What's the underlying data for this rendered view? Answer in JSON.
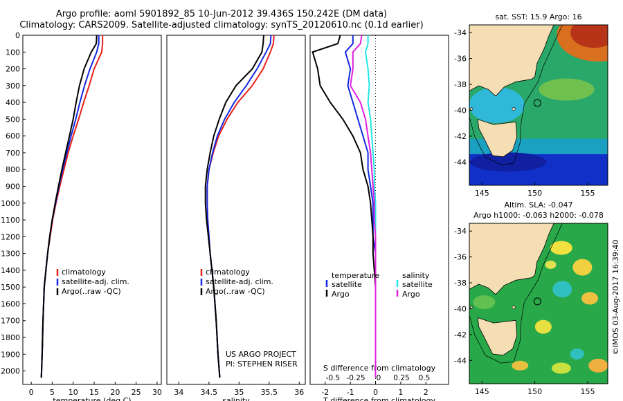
{
  "header": {
    "title_line1": "Argo profile: aoml 5901892_85 10-Jun-2012 39.436S 150.242E (DM data)",
    "title_line2": "Climatology: CARS2009. Satellite-adjusted climatology: synTS_20120610.nc (0.1d earlier)"
  },
  "colors": {
    "climatology": "#e8201a",
    "satellite": "#1428e0",
    "argo": "#000000",
    "sat_salinity": "#22e6e6",
    "argo_salinity": "#e020e0"
  },
  "chart_data": [
    {
      "type": "line",
      "panel": "temperature",
      "xlabel": "temperature (deg C)",
      "ylabel": "",
      "xlim": [
        -2,
        31
      ],
      "ylim": [
        2080,
        0
      ],
      "xticks": [
        "0",
        "5",
        "10",
        "15",
        "20",
        "25",
        "30"
      ],
      "yticks": [
        "0",
        "100",
        "200",
        "300",
        "400",
        "500",
        "600",
        "700",
        "800",
        "900",
        "1000",
        "1100",
        "1200",
        "1300",
        "1400",
        "1500",
        "1600",
        "1700",
        "1800",
        "1900",
        "2000"
      ],
      "legend": [
        "climatology",
        "satellite-adj. clim.",
        "Argo(..raw -QC)"
      ],
      "series": [
        {
          "name": "climatology",
          "color": "#e8201a",
          "x": [
            17.0,
            17.0,
            16.8,
            15.0,
            13.8,
            12.5,
            11.3,
            10.0,
            8.8,
            7.8,
            6.8,
            5.9,
            5.1,
            4.5,
            3.9,
            3.5,
            3.1,
            2.8,
            2.6,
            2.4
          ],
          "y": [
            0,
            50,
            100,
            200,
            300,
            400,
            500,
            600,
            700,
            800,
            900,
            1000,
            1100,
            1200,
            1300,
            1400,
            1500,
            1700,
            1900,
            2040
          ]
        },
        {
          "name": "satellite-adj. clim.",
          "color": "#1428e0",
          "x": [
            16.1,
            16.1,
            15.6,
            14.0,
            12.7,
            11.6,
            10.6,
            9.5,
            8.5,
            7.5,
            6.6,
            5.8,
            5.0,
            4.4,
            3.9,
            3.5,
            3.1,
            2.8,
            2.6,
            2.4
          ],
          "y": [
            0,
            50,
            100,
            200,
            300,
            400,
            500,
            600,
            700,
            800,
            900,
            1000,
            1100,
            1200,
            1300,
            1400,
            1500,
            1700,
            1900,
            2040
          ]
        },
        {
          "name": "Argo(..raw -QC)",
          "color": "#000000",
          "x": [
            15.6,
            15.5,
            14.3,
            12.6,
            11.5,
            10.7,
            10.0,
            9.1,
            8.2,
            7.3,
            6.5,
            5.7,
            5.0,
            4.4,
            3.9,
            3.5,
            3.1,
            2.8,
            2.6,
            2.4
          ],
          "y": [
            0,
            50,
            100,
            200,
            300,
            400,
            500,
            600,
            700,
            800,
            900,
            1000,
            1100,
            1200,
            1300,
            1400,
            1500,
            1700,
            1900,
            2040
          ]
        }
      ]
    },
    {
      "type": "line",
      "panel": "salinity",
      "xlabel": "salinity",
      "ylabel": "",
      "xlim": [
        33.8,
        36.1
      ],
      "ylim": [
        2080,
        0
      ],
      "xticks": [
        "34",
        "34.5",
        "35",
        "35.5",
        "36"
      ],
      "legend": [
        "climatology",
        "satellite-adj. clim.",
        "Argo(..raw -QC)"
      ],
      "annotation": [
        "US ARGO PROJECT",
        "PI: STEPHEN RISER"
      ],
      "series": [
        {
          "name": "climatology",
          "color": "#e8201a",
          "x": [
            35.58,
            35.57,
            35.52,
            35.4,
            35.22,
            34.98,
            34.8,
            34.66,
            34.57,
            34.5,
            34.47,
            34.47,
            34.48,
            34.5,
            34.52,
            34.55,
            34.58,
            34.62,
            34.65,
            34.68
          ],
          "y": [
            0,
            50,
            100,
            200,
            300,
            400,
            500,
            600,
            700,
            800,
            900,
            1000,
            1100,
            1200,
            1300,
            1400,
            1500,
            1700,
            1900,
            2040
          ]
        },
        {
          "name": "satellite-adj. clim.",
          "color": "#1428e0",
          "x": [
            35.53,
            35.52,
            35.45,
            35.3,
            35.12,
            34.92,
            34.76,
            34.64,
            34.56,
            34.5,
            34.47,
            34.47,
            34.48,
            34.5,
            34.52,
            34.55,
            34.58,
            34.62,
            34.65,
            34.68
          ],
          "y": [
            0,
            50,
            100,
            200,
            300,
            400,
            500,
            600,
            700,
            800,
            900,
            1000,
            1100,
            1200,
            1300,
            1400,
            1500,
            1700,
            1900,
            2040
          ]
        },
        {
          "name": "Argo(..raw -QC)",
          "color": "#000000",
          "x": [
            35.41,
            35.4,
            35.38,
            35.22,
            34.95,
            34.78,
            34.67,
            34.58,
            34.52,
            34.47,
            34.44,
            34.44,
            34.46,
            34.49,
            34.52,
            34.55,
            34.58,
            34.62,
            34.65,
            34.68
          ],
          "y": [
            0,
            50,
            100,
            200,
            300,
            400,
            500,
            600,
            700,
            800,
            900,
            1000,
            1100,
            1200,
            1300,
            1400,
            1500,
            1700,
            1900,
            2040
          ]
        }
      ]
    },
    {
      "type": "line",
      "panel": "difference",
      "xlabel": "T difference from climatology",
      "xlabel_top": "S difference from climatology",
      "xlim": [
        -2.6,
        2.9
      ],
      "ylim": [
        2080,
        0
      ],
      "xticks": [
        "-2",
        "-1",
        "0",
        "1",
        "2"
      ],
      "xticks_top": [
        "-0.5",
        "-0.25",
        "0",
        "0.25",
        "0.5"
      ],
      "legend": [
        "temperature",
        "satellite",
        "Argo",
        "salinity",
        "satellite",
        "Argo"
      ],
      "series": [
        {
          "name": "satellite",
          "color": "#1428e0",
          "x": [
            -0.9,
            -0.9,
            -1.2,
            -1.0,
            -1.1,
            -0.9,
            -0.7,
            -0.5,
            -0.3,
            -0.3,
            -0.2,
            -0.1,
            -0.1,
            -0.1,
            0,
            0,
            0,
            0,
            0,
            0
          ],
          "y": [
            0,
            50,
            100,
            200,
            300,
            400,
            500,
            600,
            700,
            800,
            900,
            1000,
            1100,
            1200,
            1300,
            1400,
            1500,
            1700,
            1900,
            2040
          ]
        },
        {
          "name": "Argo",
          "color": "#000000",
          "x": [
            -1.4,
            -1.5,
            -2.5,
            -2.3,
            -2.2,
            -1.8,
            -1.3,
            -0.9,
            -0.6,
            -0.5,
            -0.3,
            -0.2,
            -0.15,
            -0.1,
            -0.1,
            -0.05,
            0,
            0,
            0,
            0
          ],
          "y": [
            0,
            50,
            100,
            200,
            300,
            400,
            500,
            600,
            700,
            800,
            900,
            1000,
            1100,
            1200,
            1300,
            1400,
            1500,
            1700,
            1900,
            2040
          ]
        },
        {
          "name": "satellite",
          "color": "#22e6e6",
          "x": [
            -0.3,
            -0.3,
            -0.4,
            -0.3,
            -0.25,
            -0.3,
            -0.2,
            -0.15,
            -0.1,
            -0.05,
            -0.05,
            0,
            0,
            0,
            0,
            0,
            0,
            0,
            0,
            0
          ],
          "y": [
            0,
            50,
            100,
            200,
            300,
            400,
            500,
            600,
            700,
            800,
            900,
            1000,
            1100,
            1200,
            1300,
            1400,
            1500,
            1700,
            1900,
            2040
          ]
        },
        {
          "name": "Argo",
          "color": "#e020e0",
          "x": [
            -0.55,
            -0.6,
            -0.9,
            -0.9,
            -1.0,
            -0.6,
            -0.4,
            -0.3,
            -0.2,
            -0.15,
            -0.1,
            -0.05,
            -0.05,
            0,
            0,
            0,
            0,
            0,
            0,
            0
          ],
          "y": [
            0,
            50,
            100,
            200,
            300,
            400,
            500,
            600,
            700,
            800,
            900,
            1000,
            1100,
            1200,
            1300,
            1400,
            1500,
            1700,
            1900,
            2040
          ]
        }
      ]
    },
    {
      "type": "heatmap",
      "panel": "sst_map",
      "title": "sat. SST: 15.9 Argo: 16",
      "xticks": [
        "145",
        "150",
        "155"
      ],
      "yticks": [
        "-34",
        "-36",
        "-38",
        "-40",
        "-42",
        "-44"
      ],
      "profile_location": {
        "lon": 150.242,
        "lat": -39.436
      }
    },
    {
      "type": "heatmap",
      "panel": "sla_map",
      "title": "Altim. SLA: -0.047",
      "subtitle": "Argo h1000: -0.063 h2000: -0.078",
      "xticks": [
        "145",
        "150",
        "155"
      ],
      "yticks": [
        "-34",
        "-36",
        "-38",
        "-40",
        "-42",
        "-44"
      ],
      "profile_location": {
        "lon": 150.242,
        "lat": -39.436
      }
    }
  ],
  "side_label": "©IMOS 03-Aug-2017 16:39:40"
}
